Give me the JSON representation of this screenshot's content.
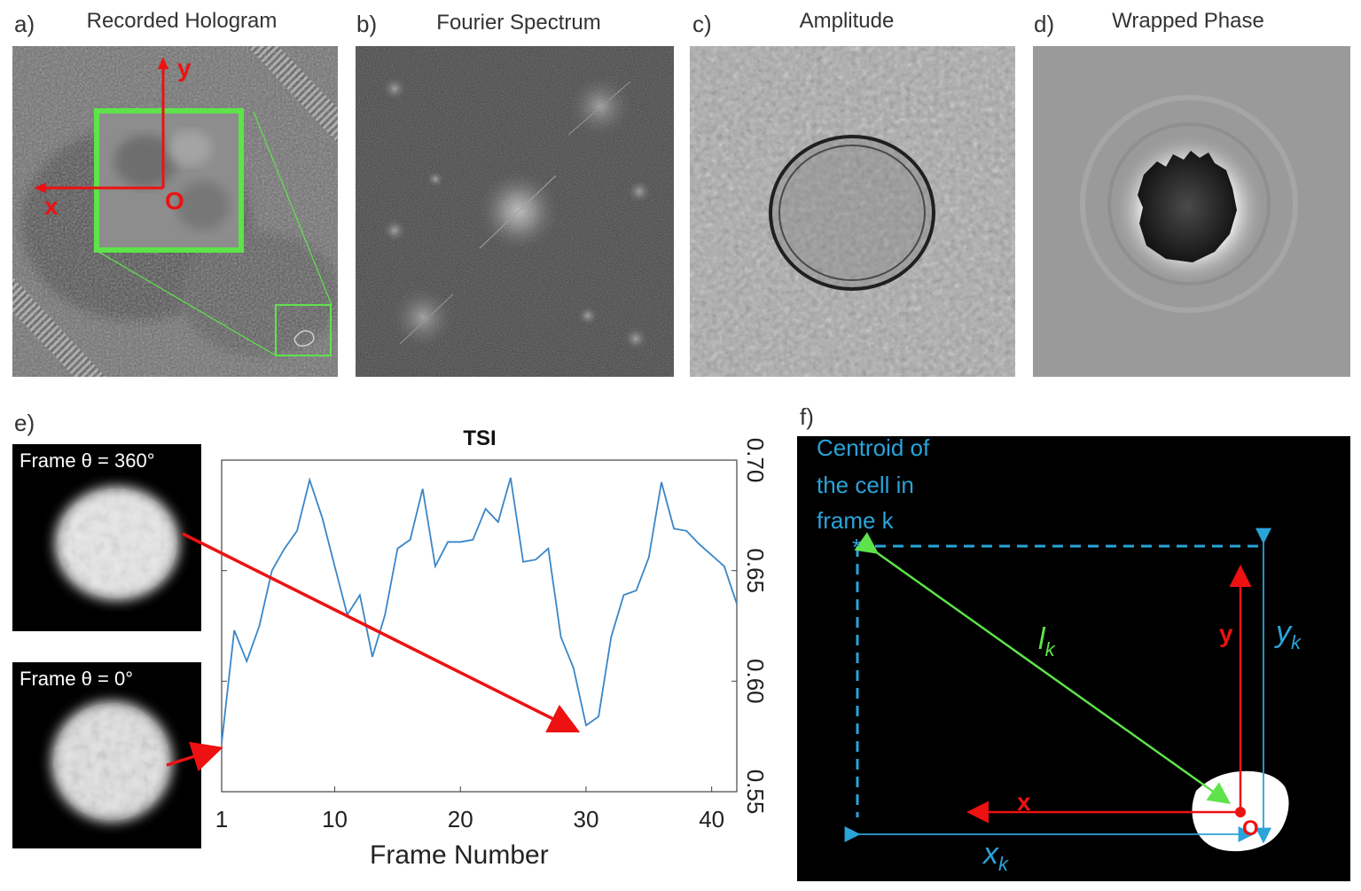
{
  "panels": {
    "a": {
      "letter": "a)",
      "title": "Recorded Hologram",
      "axis_x": "x",
      "axis_y": "y",
      "origin": "O"
    },
    "b": {
      "letter": "b)",
      "title": "Fourier Spectrum"
    },
    "c": {
      "letter": "c)",
      "title": "Amplitude"
    },
    "d": {
      "letter": "d)",
      "title": "Wrapped Phase"
    },
    "e": {
      "letter": "e)",
      "frame_top": "Frame θ = 360°",
      "frame_bottom": "Frame θ = 0°"
    },
    "f": {
      "letter": "f)",
      "centroid_line1": "Centroid of",
      "centroid_line2": "the cell in",
      "centroid_line3": "frame k",
      "star": "*",
      "axis_x": "x",
      "axis_y": "y",
      "origin": "O",
      "lk_l": "l",
      "lk_k": "k",
      "xk_x": "x",
      "xk_k": "k",
      "yk_y": "y",
      "yk_k": "k"
    }
  },
  "chart_data": {
    "type": "line",
    "title": "TSI",
    "xlabel": "Frame Number",
    "ylabel": "",
    "xlim": [
      1,
      42
    ],
    "ylim": [
      0.55,
      0.7
    ],
    "xticks": [
      1,
      10,
      20,
      30,
      40
    ],
    "yticks": [
      0.55,
      0.6,
      0.65,
      0.7
    ],
    "ytick_labels": [
      "0.55",
      "0.60",
      "0.65",
      "0.70"
    ],
    "x": [
      1,
      2,
      3,
      4,
      5,
      6,
      7,
      8,
      9,
      10,
      11,
      12,
      13,
      14,
      15,
      16,
      17,
      18,
      19,
      20,
      21,
      22,
      23,
      24,
      25,
      26,
      27,
      28,
      29,
      30,
      31,
      32,
      33,
      34,
      35,
      36,
      37,
      38,
      39,
      40,
      41,
      42
    ],
    "series": [
      {
        "values": [
          0.572,
          0.623,
          0.609,
          0.625,
          0.65,
          0.66,
          0.668,
          0.691,
          0.674,
          0.652,
          0.63,
          0.639,
          0.611,
          0.63,
          0.66,
          0.664,
          0.687,
          0.652,
          0.663,
          0.663,
          0.664,
          0.678,
          0.672,
          0.692,
          0.654,
          0.655,
          0.66,
          0.62,
          0.606,
          0.58,
          0.584,
          0.62,
          0.639,
          0.641,
          0.656,
          0.69,
          0.669,
          0.668,
          0.662,
          0.657,
          0.652,
          0.635
        ],
        "color": "#3a86c8"
      }
    ]
  },
  "colors": {
    "green": "#5ee34a",
    "red": "#ee1111",
    "cyan": "#2aa3d9",
    "line": "#3a86c8"
  }
}
